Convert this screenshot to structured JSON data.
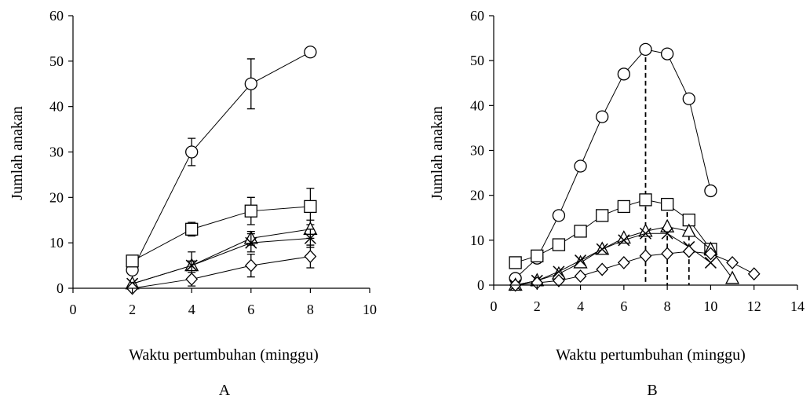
{
  "chart_data": [
    {
      "type": "line",
      "panel_label": "A",
      "xlabel": "Waktu pertumbuhan (minggu)",
      "ylabel": "Jumlah anakan",
      "xlim": [
        0,
        10
      ],
      "ylim": [
        0,
        60
      ],
      "xticks": [
        0,
        2,
        4,
        6,
        8,
        10
      ],
      "yticks": [
        0,
        10,
        20,
        30,
        40,
        50,
        60
      ],
      "grid": false,
      "x": [
        2,
        4,
        6,
        8
      ],
      "series": [
        {
          "marker": "circle",
          "values": [
            4,
            30,
            45,
            52
          ],
          "errors": [
            0,
            3,
            5.5,
            1
          ]
        },
        {
          "marker": "square",
          "values": [
            6,
            13,
            17,
            18
          ],
          "errors": [
            0,
            1.5,
            3,
            4
          ]
        },
        {
          "marker": "triangle",
          "values": [
            1,
            5,
            11,
            13
          ],
          "errors": [
            0,
            1,
            1.5,
            2
          ]
        },
        {
          "marker": "cross",
          "values": [
            1,
            5,
            10,
            11
          ],
          "errors": [
            0,
            3,
            2,
            2
          ]
        },
        {
          "marker": "diamond",
          "values": [
            0,
            2,
            5,
            7
          ],
          "errors": [
            0,
            1.5,
            2.5,
            2.5
          ]
        }
      ]
    },
    {
      "type": "line",
      "panel_label": "B",
      "xlabel": "Waktu pertumbuhan (minggu)",
      "ylabel": "Jumlah anakan",
      "xlim": [
        0,
        14
      ],
      "ylim": [
        0,
        60
      ],
      "xticks": [
        0,
        2,
        4,
        6,
        8,
        10,
        12,
        14
      ],
      "yticks": [
        0,
        10,
        20,
        30,
        40,
        50,
        60
      ],
      "grid": false,
      "series": [
        {
          "marker": "circle",
          "x": [
            1,
            2,
            3,
            4,
            5,
            6,
            7,
            8,
            9,
            10
          ],
          "values": [
            1.5,
            6,
            15.5,
            26.5,
            37.5,
            47,
            52.5,
            51.5,
            41.5,
            21
          ]
        },
        {
          "marker": "square",
          "x": [
            1,
            2,
            3,
            4,
            5,
            6,
            7,
            8,
            9,
            10
          ],
          "values": [
            5,
            6.5,
            9,
            12,
            15.5,
            17.5,
            19,
            18,
            14.5,
            8
          ]
        },
        {
          "marker": "triangle",
          "x": [
            1,
            2,
            3,
            4,
            5,
            6,
            7,
            8,
            9,
            10,
            11
          ],
          "values": [
            0,
            1,
            2.5,
            5,
            8,
            10.5,
            12,
            13,
            12,
            8,
            1.5
          ]
        },
        {
          "marker": "cross",
          "x": [
            1,
            2,
            3,
            4,
            5,
            6,
            7,
            8,
            9,
            10
          ],
          "values": [
            0,
            1,
            3,
            5.5,
            8,
            10,
            11.5,
            11.5,
            8.5,
            5
          ]
        },
        {
          "marker": "diamond",
          "x": [
            1,
            2,
            3,
            4,
            5,
            6,
            7,
            8,
            9,
            10,
            11,
            12
          ],
          "values": [
            0,
            0.5,
            1,
            2,
            3.5,
            5,
            6.5,
            7,
            7.5,
            7,
            5,
            2.5
          ]
        }
      ],
      "peak_lines_x": [
        7,
        8,
        9
      ]
    }
  ]
}
